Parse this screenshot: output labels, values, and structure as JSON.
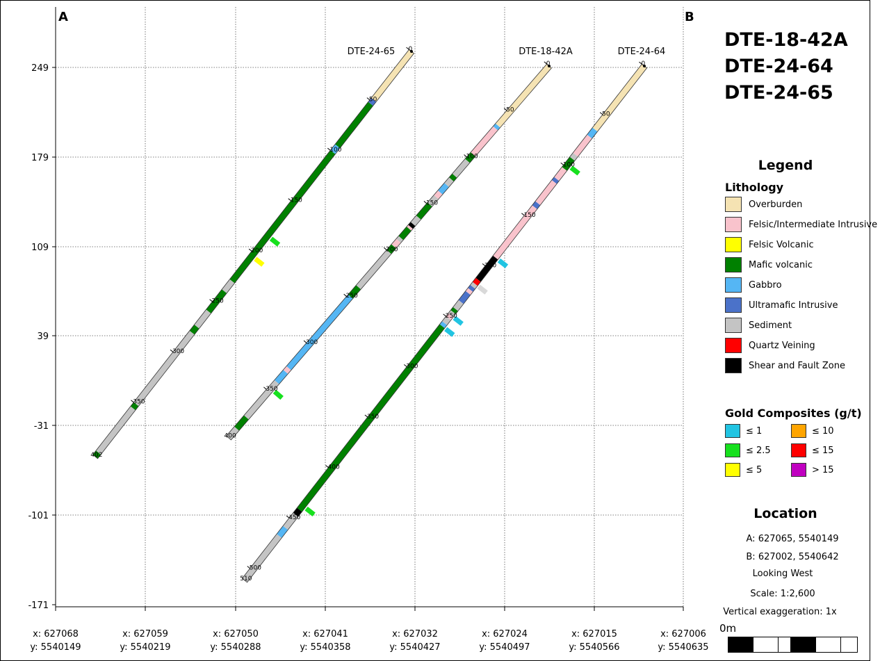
{
  "section": {
    "label_a": "A",
    "label_b": "B",
    "y_ticks": [
      249,
      179,
      109,
      39,
      -31,
      -101,
      -171
    ],
    "x_ticks": [
      {
        "x": "x: 627068",
        "y": "y: 5540149"
      },
      {
        "x": "x: 627059",
        "y": "y: 5540219"
      },
      {
        "x": "x: 627050",
        "y": "y: 5540288"
      },
      {
        "x": "x: 627041",
        "y": "y: 5540358"
      },
      {
        "x": "x: 627032",
        "y": "y: 5540427"
      },
      {
        "x": "x: 627024",
        "y": "y: 5540497"
      },
      {
        "x": "x: 627015",
        "y": "y: 5540566"
      },
      {
        "x": "x: 627006",
        "y": "y: 5540635"
      }
    ],
    "holes": [
      {
        "name": "DTE-24-65",
        "total_depth": 402,
        "end_label": "402",
        "depth_marks": [
          0,
          50,
          100,
          150,
          200,
          250,
          300,
          350
        ],
        "intervals": [
          {
            "from": 0,
            "to": 48,
            "lith": "overburden"
          },
          {
            "from": 48,
            "to": 52,
            "lith": "ultramafic"
          },
          {
            "from": 52,
            "to": 94,
            "lith": "mafic"
          },
          {
            "from": 94,
            "to": 100,
            "lith": "gabbro"
          },
          {
            "from": 100,
            "to": 228,
            "lith": "mafic"
          },
          {
            "from": 228,
            "to": 238,
            "lith": "sediment"
          },
          {
            "from": 238,
            "to": 258,
            "lith": "mafic"
          },
          {
            "from": 258,
            "to": 273,
            "lith": "sediment"
          },
          {
            "from": 273,
            "to": 279,
            "lith": "mafic"
          },
          {
            "from": 279,
            "to": 350,
            "lith": "sediment"
          },
          {
            "from": 350,
            "to": 354,
            "lith": "mafic"
          },
          {
            "from": 354,
            "to": 398,
            "lith": "sediment"
          },
          {
            "from": 398,
            "to": 402,
            "lith": "mafic"
          }
        ],
        "gold": [
          {
            "at": 183,
            "grade": "le2_5"
          },
          {
            "at": 203,
            "grade": "le5"
          }
        ]
      },
      {
        "name": "DTE-18-42A",
        "total_depth": 400,
        "end_label": "400",
        "depth_marks": [
          0,
          50,
          100,
          150,
          200,
          250,
          300,
          350
        ],
        "intervals": [
          {
            "from": 0,
            "to": 64,
            "lith": "overburden"
          },
          {
            "from": 64,
            "to": 67,
            "lith": "gabbro"
          },
          {
            "from": 67,
            "to": 95,
            "lith": "felsic_int"
          },
          {
            "from": 95,
            "to": 102,
            "lith": "mafic"
          },
          {
            "from": 102,
            "to": 118,
            "lith": "sediment"
          },
          {
            "from": 118,
            "to": 122,
            "lith": "mafic"
          },
          {
            "from": 122,
            "to": 128,
            "lith": "sediment"
          },
          {
            "from": 128,
            "to": 136,
            "lith": "gabbro"
          },
          {
            "from": 136,
            "to": 141,
            "lith": "felsic_int"
          },
          {
            "from": 141,
            "to": 149,
            "lith": "sediment"
          },
          {
            "from": 149,
            "to": 163,
            "lith": "mafic"
          },
          {
            "from": 163,
            "to": 170,
            "lith": "sediment"
          },
          {
            "from": 170,
            "to": 173,
            "lith": "shear"
          },
          {
            "from": 173,
            "to": 175,
            "lith": "felsic_int"
          },
          {
            "from": 175,
            "to": 185,
            "lith": "mafic"
          },
          {
            "from": 185,
            "to": 188,
            "lith": "sediment"
          },
          {
            "from": 188,
            "to": 194,
            "lith": "felsic_int"
          },
          {
            "from": 194,
            "to": 200,
            "lith": "mafic"
          },
          {
            "from": 200,
            "to": 238,
            "lith": "sediment"
          },
          {
            "from": 238,
            "to": 248,
            "lith": "mafic"
          },
          {
            "from": 248,
            "to": 325,
            "lith": "gabbro"
          },
          {
            "from": 325,
            "to": 329,
            "lith": "felsic_int"
          },
          {
            "from": 329,
            "to": 340,
            "lith": "gabbro"
          },
          {
            "from": 340,
            "to": 378,
            "lith": "sediment"
          },
          {
            "from": 378,
            "to": 390,
            "lith": "mafic"
          },
          {
            "from": 390,
            "to": 400,
            "lith": "sediment"
          }
        ],
        "gold": [
          {
            "at": 347,
            "grade": "le2_5"
          }
        ]
      },
      {
        "name": "DTE-24-64",
        "total_depth": 510,
        "end_label": "510",
        "depth_marks": [
          0,
          50,
          100,
          150,
          200,
          250,
          300,
          350,
          400,
          450,
          500
        ],
        "intervals": [
          {
            "from": 0,
            "to": 63,
            "lith": "overburden"
          },
          {
            "from": 63,
            "to": 70,
            "lith": "gabbro"
          },
          {
            "from": 70,
            "to": 88,
            "lith": "felsic_int"
          },
          {
            "from": 88,
            "to": 92,
            "lith": "sediment"
          },
          {
            "from": 92,
            "to": 102,
            "lith": "mafic"
          },
          {
            "from": 102,
            "to": 112,
            "lith": "felsic_int"
          },
          {
            "from": 112,
            "to": 115,
            "lith": "ultramafic"
          },
          {
            "from": 115,
            "to": 136,
            "lith": "felsic_int"
          },
          {
            "from": 136,
            "to": 140,
            "lith": "ultramafic"
          },
          {
            "from": 140,
            "to": 190,
            "lith": "felsic_int"
          },
          {
            "from": 190,
            "to": 212,
            "lith": "shear"
          },
          {
            "from": 212,
            "to": 216,
            "lith": "quartz"
          },
          {
            "from": 216,
            "to": 219,
            "lith": "sediment"
          },
          {
            "from": 219,
            "to": 222,
            "lith": "ultramafic"
          },
          {
            "from": 222,
            "to": 225,
            "lith": "felsic_int"
          },
          {
            "from": 225,
            "to": 234,
            "lith": "ultramafic"
          },
          {
            "from": 234,
            "to": 241,
            "lith": "sediment"
          },
          {
            "from": 241,
            "to": 244,
            "lith": "mafic"
          },
          {
            "from": 244,
            "to": 247,
            "lith": "sediment"
          },
          {
            "from": 247,
            "to": 250,
            "lith": "felsic_int"
          },
          {
            "from": 250,
            "to": 255,
            "lith": "sediment"
          },
          {
            "from": 255,
            "to": 258,
            "lith": "gabbro"
          },
          {
            "from": 258,
            "to": 440,
            "lith": "mafic"
          },
          {
            "from": 440,
            "to": 445,
            "lith": "shear"
          },
          {
            "from": 445,
            "to": 458,
            "lith": "sediment"
          },
          {
            "from": 458,
            "to": 466,
            "lith": "gabbro"
          },
          {
            "from": 466,
            "to": 510,
            "lith": "sediment"
          }
        ],
        "gold": [
          {
            "at": 98,
            "grade": "le2_5"
          },
          {
            "at": 190,
            "grade": "le1"
          },
          {
            "at": 216,
            "grade": "sediment_vein"
          },
          {
            "at": 247,
            "grade": "le1"
          },
          {
            "at": 258,
            "grade": "le1"
          },
          {
            "at": 436,
            "grade": "le2_5"
          }
        ]
      }
    ]
  },
  "panel": {
    "title_lines": [
      "DTE-18-42A",
      "DTE-24-64",
      "DTE-24-65"
    ],
    "legend_title": "Legend",
    "lithology_title": "Lithology",
    "lithology": [
      {
        "key": "overburden",
        "label": "Overburden",
        "color": "#f5e3b3"
      },
      {
        "key": "felsic_int",
        "label": "Felsic/Intermediate Intrusive",
        "color": "#f9c3cc"
      },
      {
        "key": "felsic_volc",
        "label": "Felsic Volcanic",
        "color": "#ffff00"
      },
      {
        "key": "mafic",
        "label": "Mafic volcanic",
        "color": "#008000"
      },
      {
        "key": "gabbro",
        "label": "Gabbro",
        "color": "#55b6f4"
      },
      {
        "key": "ultramafic",
        "label": "Ultramafic Intrusive",
        "color": "#4b72c9"
      },
      {
        "key": "sediment",
        "label": "Sediment",
        "color": "#c4c4c4"
      },
      {
        "key": "quartz",
        "label": "Quartz Veining",
        "color": "#ff0000"
      },
      {
        "key": "shear",
        "label": "Shear and Fault Zone",
        "color": "#000000"
      }
    ],
    "gold_title": "Gold Composites (g/t)",
    "gold": [
      {
        "key": "le1",
        "label": "≤ 1",
        "color": "#21c4e2"
      },
      {
        "key": "le10",
        "label": "≤ 10",
        "color": "#ffa500"
      },
      {
        "key": "le2_5",
        "label": "≤ 2.5",
        "color": "#17e01e"
      },
      {
        "key": "le15",
        "label": "≤ 15",
        "color": "#ff0000"
      },
      {
        "key": "le5",
        "label": "≤ 5",
        "color": "#ffff00"
      },
      {
        "key": "gt15",
        "label": "> 15",
        "color": "#c000c0"
      }
    ],
    "location_title": "Location",
    "location_lines": [
      "A:   627065, 5540149",
      "B:   627002, 5540642",
      "Looking West",
      "Scale: 1:2,600",
      "Vertical exaggeration: 1x"
    ],
    "scale_label": "0m"
  }
}
